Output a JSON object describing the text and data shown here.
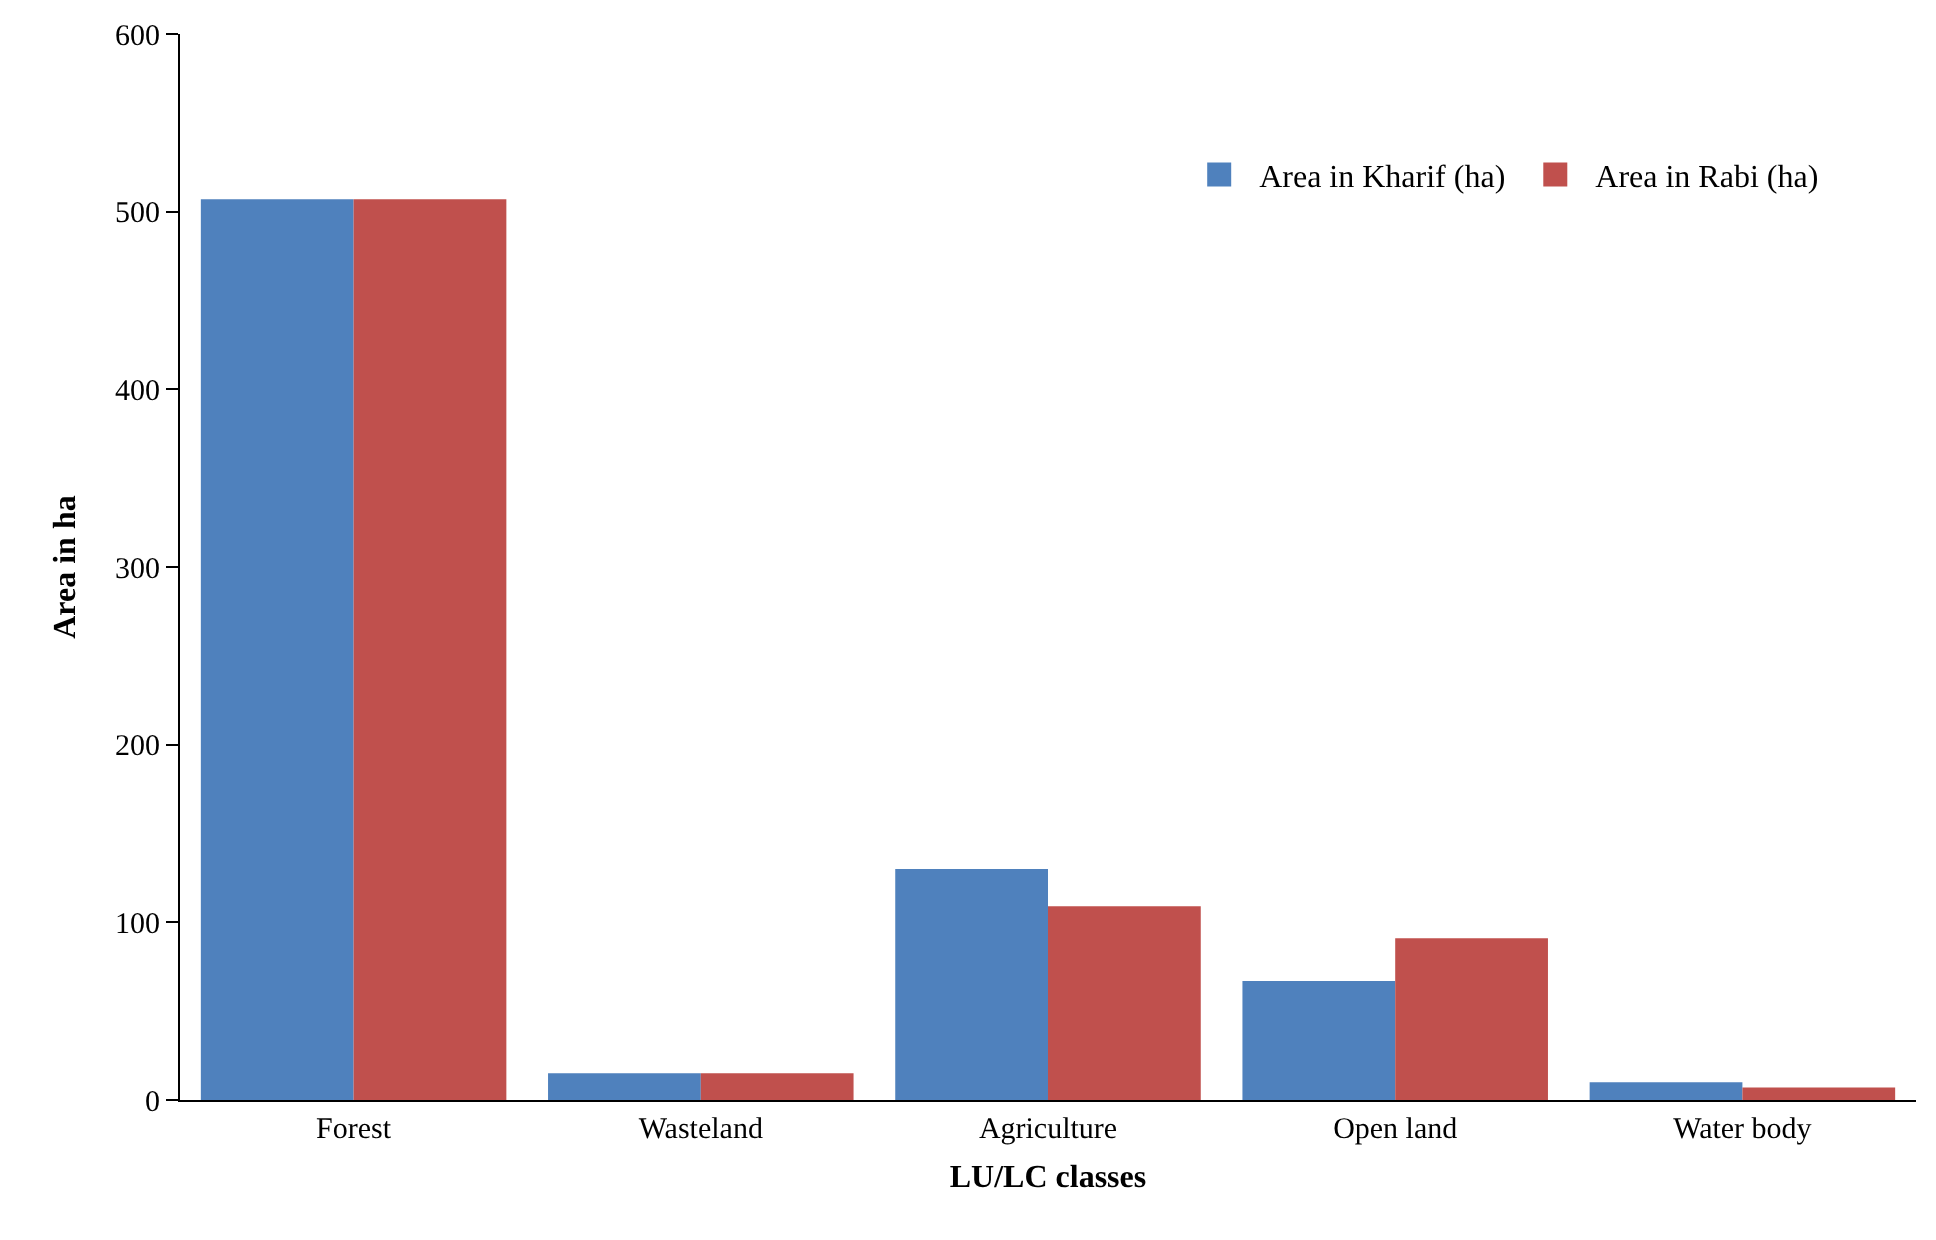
{
  "chart_data": {
    "type": "bar",
    "xlabel": "LU/LC classes",
    "ylabel": "Area in ha",
    "categories": [
      "Forest",
      "Wasteland",
      "Agriculture",
      "Open land",
      "Water body"
    ],
    "series": [
      {
        "name": "Area in Kharif (ha)",
        "color": "#4f81bd",
        "values": [
          507,
          15,
          130,
          67,
          10
        ]
      },
      {
        "name": "Area in Rabi (ha)",
        "color": "#c0504d",
        "values": [
          507,
          15,
          109,
          91,
          7
        ]
      }
    ],
    "ylim": [
      0,
      600
    ],
    "yticks": [
      0,
      100,
      200,
      300,
      400,
      500,
      600
    ],
    "legend": "top right"
  }
}
